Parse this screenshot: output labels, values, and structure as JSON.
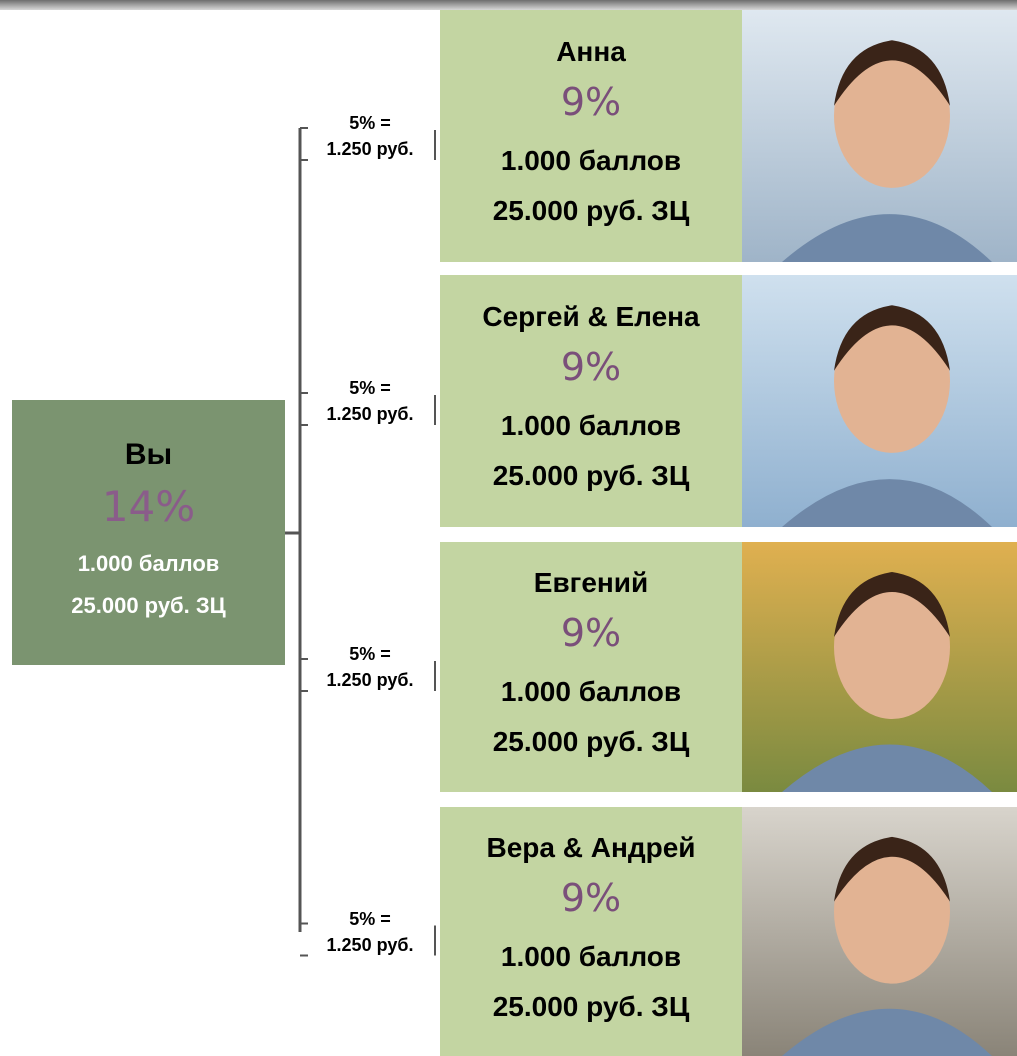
{
  "root": {
    "label": "Вы",
    "percent": "14%",
    "points": "1.000 баллов",
    "turnover": "25.000 руб. ЗЦ"
  },
  "nodes": [
    {
      "label": "Анна",
      "percent": "9%",
      "points": "1.000 баллов",
      "turnover": "25.000 руб. ЗЦ",
      "link": [
        "5% =",
        "1.250 руб."
      ]
    },
    {
      "label": "Сергей & Елена",
      "percent": "9%",
      "points": "1.000 баллов",
      "turnover": "25.000 руб. ЗЦ",
      "link": [
        "5% =",
        "1.250 руб."
      ]
    },
    {
      "label": "Евгений",
      "percent": "9%",
      "points": "1.000 баллов",
      "turnover": "25.000 руб. ЗЦ",
      "link": [
        "5% =",
        "1.250 руб."
      ]
    },
    {
      "label": "Вера & Андрей",
      "percent": "9%",
      "points": "1.000 баллов",
      "turnover": "25.000 руб. ЗЦ",
      "link": [
        "5% =",
        "1.250 руб."
      ]
    }
  ]
}
